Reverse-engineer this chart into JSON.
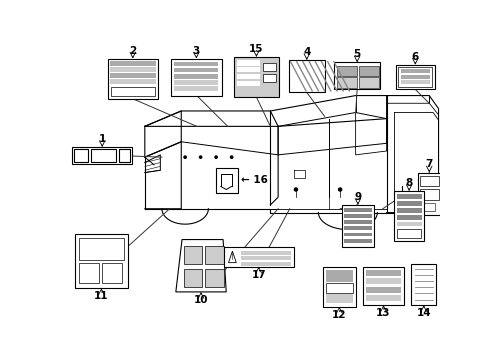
{
  "bg_color": "#ffffff",
  "lc": "#000000",
  "gray1": "#aaaaaa",
  "gray2": "#cccccc",
  "gray3": "#888888",
  "figw": 4.89,
  "figh": 3.6,
  "dpi": 100
}
